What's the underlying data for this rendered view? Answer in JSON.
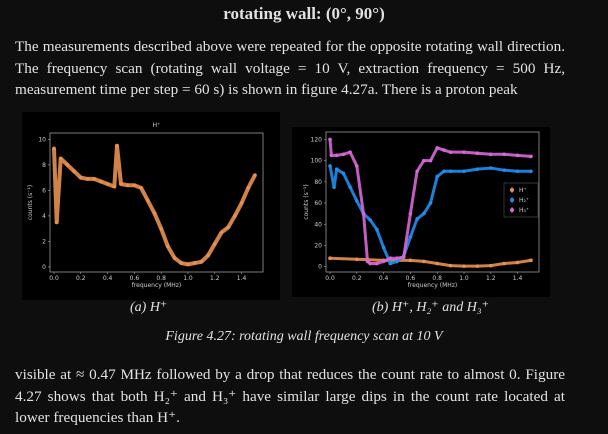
{
  "section_title": "rotating wall: (0°, 90°)",
  "paragraph_top": "The measurements described above were repeated for the opposite rotating wall direction. The frequency scan (rotating wall voltage = 10 V, extraction frequency = 500 Hz, measurement time per step = 60 s) is shown in figure 4.27a.  There is a proton peak",
  "paragraph_bottom": "visible at ≈ 0.47 MHz followed by a drop that reduces the count rate to almost 0.  Figure 4.27 shows that both H₂⁺ and H₃⁺ have similar large dips in the count rate located at lower frequencies than H⁺.",
  "subcaption_a": "(a) H⁺",
  "subcaption_b": "(b) H⁺, H₂⁺ and H₃⁺",
  "figure_caption": "Figure 4.27: rotating wall frequency scan at 10 V",
  "chart_data": [
    {
      "type": "scatter",
      "title": "H⁺",
      "xlabel": "frequency (MHz)",
      "ylabel": "counts (s⁻¹)",
      "xlim": [
        -0.03,
        1.56
      ],
      "ylim": [
        -0.4,
        10.5
      ],
      "xticks": [
        "0.0",
        "0.2",
        "0.4",
        "0.6",
        "0.8",
        "1.0",
        "1.2",
        "1.4"
      ],
      "yticks": [
        "0",
        "2",
        "4",
        "6",
        "8",
        "10"
      ],
      "series": [
        {
          "color": "#e8914f",
          "x": [
            0,
            0.02,
            0.05,
            0.1,
            0.15,
            0.2,
            0.25,
            0.3,
            0.35,
            0.4,
            0.45,
            0.47,
            0.5,
            0.55,
            0.6,
            0.65,
            0.7,
            0.75,
            0.8,
            0.85,
            0.9,
            0.95,
            1.0,
            1.05,
            1.1,
            1.15,
            1.2,
            1.25,
            1.3,
            1.35,
            1.4,
            1.45,
            1.5
          ],
          "y": [
            9.3,
            3.5,
            8.5,
            8.0,
            7.5,
            7.0,
            6.9,
            6.9,
            6.7,
            6.5,
            6.3,
            9.5,
            6.5,
            6.4,
            6.4,
            6.2,
            5.2,
            4.2,
            3.0,
            1.6,
            0.7,
            0.3,
            0.2,
            0.3,
            0.4,
            0.9,
            1.8,
            2.7,
            3.1,
            4.0,
            5.0,
            6.2,
            7.2
          ]
        }
      ]
    },
    {
      "type": "scatter",
      "xlabel": "frequency (MHz)",
      "ylabel": "counts (s⁻¹)",
      "xlim": [
        -0.03,
        1.56
      ],
      "ylim": [
        -5,
        127
      ],
      "xticks": [
        "0.0",
        "0.2",
        "0.4",
        "0.6",
        "0.8",
        "1.0",
        "1.2",
        "1.4"
      ],
      "yticks": [
        "0",
        "20",
        "40",
        "60",
        "80",
        "100",
        "120"
      ],
      "legend": "right",
      "series": [
        {
          "name": "H⁺",
          "color": "#e8914f",
          "x": [
            0,
            0.2,
            0.4,
            0.6,
            0.7,
            0.8,
            0.9,
            1.0,
            1.1,
            1.2,
            1.3,
            1.4,
            1.5
          ],
          "y": [
            8,
            7,
            6,
            6,
            5,
            3,
            1,
            0.5,
            0.5,
            1,
            3,
            4,
            6
          ]
        },
        {
          "name": "H₂⁺",
          "color": "#1e8ff0",
          "x": [
            0,
            0.03,
            0.05,
            0.1,
            0.15,
            0.2,
            0.25,
            0.3,
            0.35,
            0.4,
            0.45,
            0.5,
            0.55,
            0.6,
            0.65,
            0.7,
            0.75,
            0.8,
            0.85,
            0.9,
            1.0,
            1.1,
            1.2,
            1.3,
            1.4,
            1.5
          ],
          "y": [
            95,
            75,
            92,
            88,
            75,
            62,
            50,
            44,
            35,
            18,
            3,
            5,
            10,
            28,
            45,
            50,
            60,
            85,
            90,
            90,
            90,
            92,
            93,
            91,
            90,
            90
          ]
        },
        {
          "name": "H₃⁺",
          "color": "#d867d8",
          "x": [
            0,
            0.01,
            0.05,
            0.1,
            0.15,
            0.2,
            0.25,
            0.28,
            0.3,
            0.35,
            0.4,
            0.45,
            0.5,
            0.55,
            0.6,
            0.65,
            0.7,
            0.75,
            0.8,
            0.85,
            0.9,
            1.0,
            1.1,
            1.2,
            1.3,
            1.4,
            1.5
          ],
          "y": [
            120,
            105,
            105,
            106,
            108,
            95,
            50,
            5,
            3,
            3,
            5,
            8,
            8,
            9,
            50,
            90,
            100,
            100,
            112,
            110,
            108,
            108,
            107,
            106,
            106,
            105,
            104
          ]
        }
      ]
    }
  ]
}
